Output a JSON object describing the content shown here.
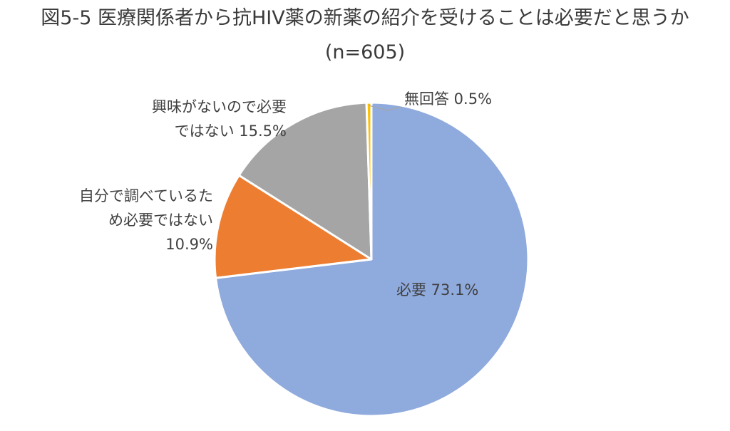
{
  "chart_data": {
    "type": "pie",
    "title": "図5-5 医療関係者から抗HIV薬の新薬の紹介を受けることは必要だと思うか",
    "subtitle": "(n=605)",
    "slices": [
      {
        "label": "必要",
        "value": 73.1,
        "display": "必要 73.1%",
        "color": "#8faadc"
      },
      {
        "label": "自分で調べているため必要ではない",
        "value": 10.9,
        "display_lines": [
          "自分で調べているた",
          "め必要ではない",
          "10.9%"
        ],
        "color": "#ed7d31"
      },
      {
        "label": "興味がないので必要ではない",
        "value": 15.5,
        "display_lines": [
          "興味がないので必要",
          "ではない 15.5%"
        ],
        "color": "#a5a5a5"
      },
      {
        "label": "無回答",
        "value": 0.5,
        "display": "無回答 0.5%",
        "color": "#ffc000"
      }
    ]
  }
}
